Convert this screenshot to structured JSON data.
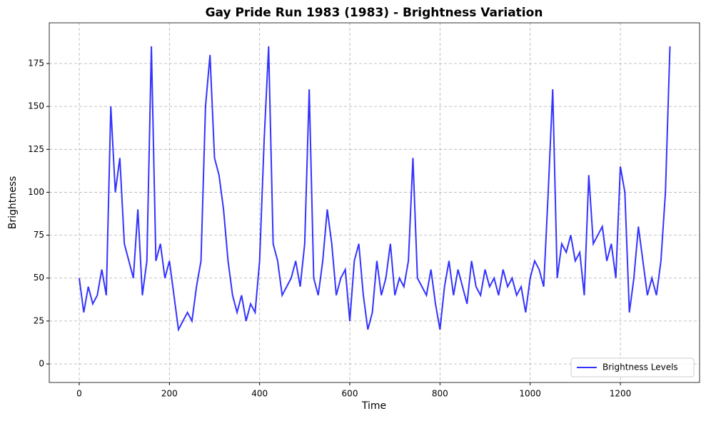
{
  "chart_data": {
    "type": "line",
    "title": "Gay Pride Run 1983 (1983) - Brightness Variation",
    "x_label": "Time",
    "y_label": "Brightness",
    "x": [
      0,
      10,
      20,
      30,
      40,
      50,
      60,
      70,
      80,
      90,
      100,
      110,
      120,
      130,
      140,
      150,
      160,
      170,
      180,
      190,
      200,
      210,
      220,
      230,
      240,
      250,
      260,
      270,
      280,
      290,
      300,
      310,
      320,
      330,
      340,
      350,
      360,
      370,
      380,
      390,
      400,
      410,
      420,
      430,
      440,
      450,
      460,
      470,
      480,
      490,
      500,
      510,
      520,
      530,
      540,
      550,
      560,
      570,
      580,
      590,
      600,
      610,
      620,
      630,
      640,
      650,
      660,
      670,
      680,
      690,
      700,
      710,
      720,
      730,
      740,
      750,
      760,
      770,
      780,
      790,
      800,
      810,
      820,
      830,
      840,
      850,
      860,
      870,
      880,
      890,
      900,
      910,
      920,
      930,
      940,
      950,
      960,
      970,
      980,
      990,
      1000,
      1010,
      1020,
      1030,
      1040,
      1050,
      1060,
      1070,
      1080,
      1090,
      1100,
      1110,
      1120,
      1130,
      1140,
      1150,
      1160,
      1170,
      1180,
      1190,
      1200,
      1210,
      1220,
      1230,
      1240,
      1250,
      1260,
      1270,
      1280,
      1290,
      1300,
      1310
    ],
    "series": [
      {
        "name": "Brightness Levels",
        "color": "#0000ff",
        "values": [
          50,
          30,
          45,
          35,
          40,
          55,
          40,
          150,
          100,
          120,
          70,
          60,
          50,
          90,
          40,
          60,
          185,
          60,
          70,
          50,
          60,
          40,
          20,
          25,
          30,
          25,
          45,
          60,
          150,
          180,
          120,
          110,
          90,
          60,
          40,
          30,
          40,
          25,
          35,
          30,
          60,
          130,
          185,
          70,
          60,
          40,
          45,
          50,
          60,
          45,
          70,
          160,
          50,
          40,
          60,
          90,
          70,
          40,
          50,
          55,
          25,
          60,
          70,
          40,
          20,
          30,
          60,
          40,
          50,
          70,
          40,
          50,
          45,
          60,
          120,
          50,
          45,
          40,
          55,
          35,
          20,
          45,
          60,
          40,
          55,
          45,
          35,
          60,
          45,
          40,
          55,
          45,
          50,
          40,
          55,
          45,
          50,
          40,
          45,
          30,
          50,
          60,
          55,
          45,
          100,
          160,
          50,
          70,
          65,
          75,
          60,
          65,
          40,
          110,
          70,
          75,
          80,
          60,
          70,
          50,
          115,
          100,
          30,
          50,
          80,
          60,
          40,
          50,
          40,
          60,
          100,
          185
        ]
      }
    ],
    "xlim": [
      -66.5,
      1375.7
    ],
    "ylim": [
      -10.8,
      198.7
    ],
    "xticks": [
      0,
      200,
      400,
      600,
      800,
      1000,
      1200
    ],
    "yticks": [
      0,
      25,
      50,
      75,
      100,
      125,
      150,
      175
    ],
    "grid": true,
    "legend": "lower right"
  }
}
